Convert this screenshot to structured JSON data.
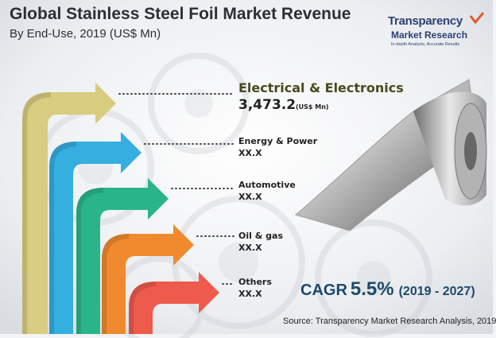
{
  "chart_data": {
    "type": "bar",
    "title": "Global Stainless Steel Foil Market Revenue",
    "subtitle": "By End-Use, 2019 (US$ Mn)",
    "categories": [
      "Electrical & Electronics",
      "Energy & Power",
      "Automotive",
      "Oil & gas",
      "Others"
    ],
    "values": [
      3473.2,
      null,
      null,
      null,
      null
    ],
    "value_labels": [
      "3,473.2",
      "XX.X",
      "XX.X",
      "XX.X",
      "XX.X"
    ],
    "unit_label": "(US$ Mn)",
    "bar_colors": [
      "#d8cc7e",
      "#35aee0",
      "#2ab589",
      "#f08a2e",
      "#ee5a4c"
    ]
  },
  "cagr": {
    "prefix": "CAGR",
    "value": "5.5%",
    "period": "(2019 - 2027)"
  },
  "brand": {
    "name": "Transparency",
    "name2": "Market Research",
    "tagline": "In-depth Analysis, Accurate Results"
  },
  "source": "Source: Transparency Market Research Analysis, 2019",
  "colors": {
    "title": "#2b2f36",
    "cagr": "#1d4a6b",
    "accent": "#e25a2a"
  }
}
